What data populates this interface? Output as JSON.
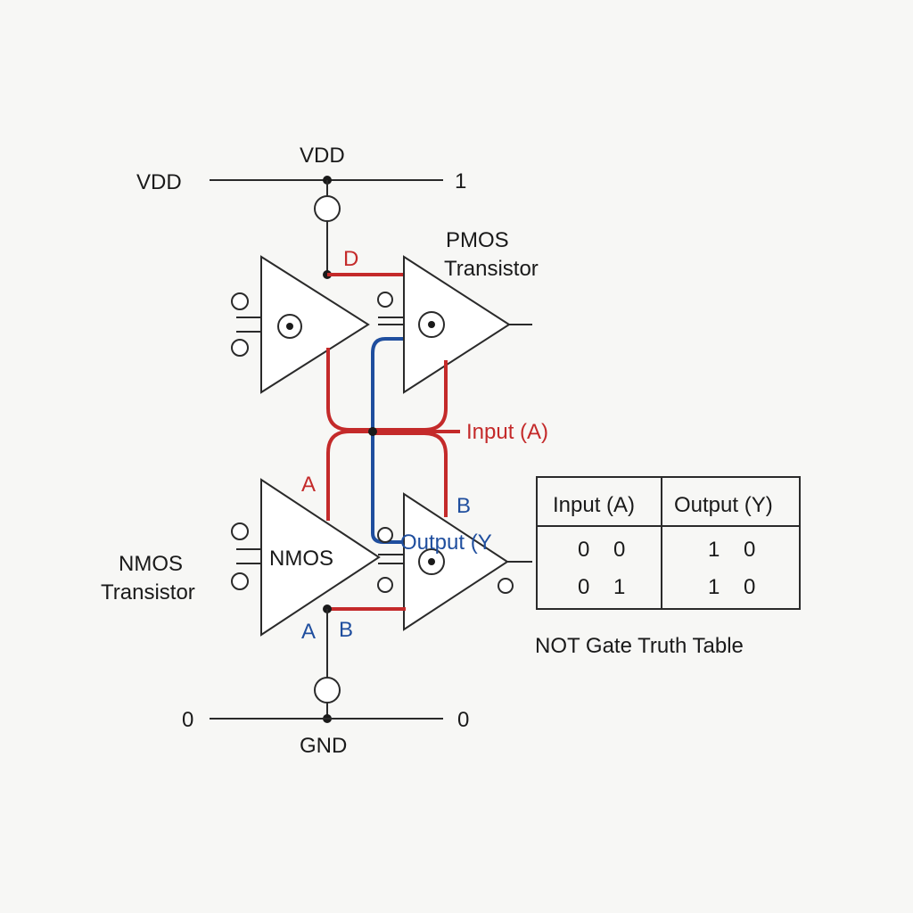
{
  "labels": {
    "vdd_left": "VDD",
    "vdd_top": "VDD",
    "vdd_right": "1",
    "pmos_line1": "PMOS",
    "pmos_line2": "Transistor",
    "d_label": "D",
    "input_a": "Input (A)",
    "a_upper": "A",
    "b_upper": "B",
    "output_y": "Output (Y",
    "nmos_inner": "NMOS",
    "nmos_line1": "NMOS",
    "nmos_line2": "Transistor",
    "a_lower": "A",
    "b_lower": "B",
    "gnd_left": "0",
    "gnd_right": "0",
    "gnd": "GND"
  },
  "truth_table": {
    "headers": [
      "Input (A)",
      "Output (Y)"
    ],
    "rows": [
      {
        "input": "0    0",
        "output": "1    0"
      },
      {
        "input": "0    1",
        "output": "1    0"
      }
    ],
    "caption": "NOT Gate Truth Table"
  },
  "colors": {
    "red": "#c42a2a",
    "blue": "#1f4e9e",
    "ink": "#2a2a2a"
  }
}
